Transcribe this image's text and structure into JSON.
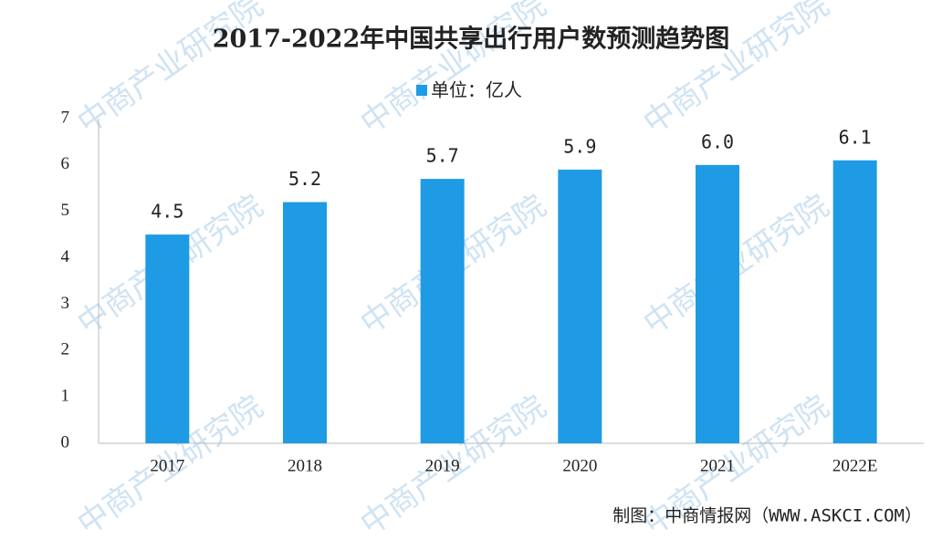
{
  "chart_data": {
    "type": "bar",
    "title": "2017-2022年中国共享出行用户数预测趋势图",
    "categories": [
      "2017",
      "2018",
      "2019",
      "2020",
      "2021",
      "2022E"
    ],
    "series": [
      {
        "name": "单位：亿人",
        "color": "#1e9be4",
        "values": [
          4.5,
          5.2,
          5.7,
          5.9,
          6.0,
          6.1
        ],
        "value_labels": [
          "4.5",
          "5.2",
          "5.7",
          "5.9",
          "6.0",
          "6.1"
        ]
      }
    ],
    "ylim": [
      0,
      7
    ],
    "yticks": [
      0,
      1,
      2,
      3,
      4,
      5,
      6,
      7
    ],
    "grid": false,
    "source": "制图：中商情报网（WWW.ASKCI.COM）",
    "watermark": "中商产业研究院"
  }
}
